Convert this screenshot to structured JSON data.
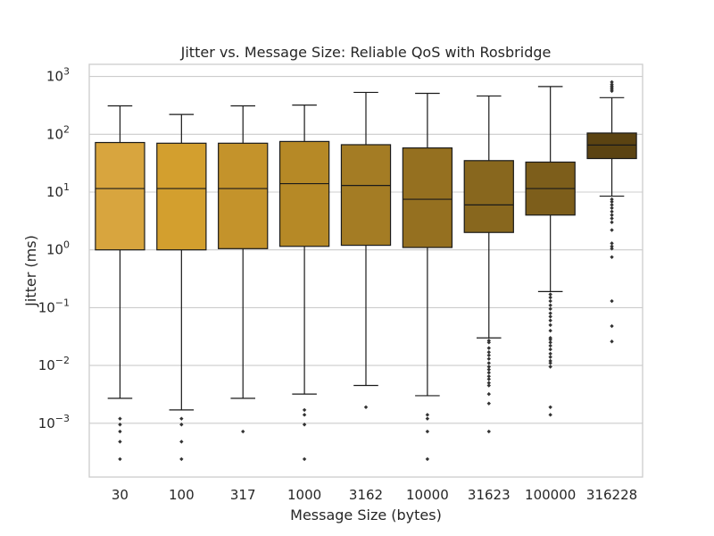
{
  "chart_data": {
    "type": "box",
    "title": "Jitter vs. Message Size: Reliable QoS with Rosbridge",
    "xlabel": "Message Size (bytes)",
    "ylabel": "Jitter (ms)",
    "yscale": "log",
    "ylim": [
      0.00015,
      1600
    ],
    "yticks": [
      {
        "value": 0.001,
        "base": "10",
        "exp": "−3"
      },
      {
        "value": 0.01,
        "base": "10",
        "exp": "−2"
      },
      {
        "value": 0.1,
        "base": "10",
        "exp": "−1"
      },
      {
        "value": 1,
        "base": "10",
        "exp": "0"
      },
      {
        "value": 10,
        "base": "10",
        "exp": "1"
      },
      {
        "value": 100,
        "base": "10",
        "exp": "2"
      },
      {
        "value": 1000,
        "base": "10",
        "exp": "3"
      }
    ],
    "grid": "y",
    "categories": [
      "30",
      "100",
      "317",
      "1000",
      "3162",
      "10000",
      "31623",
      "100000",
      "316228"
    ],
    "boxes": [
      {
        "category": "30",
        "color": "#d8a53e",
        "whisker_low": 0.0027,
        "q1": 1.0,
        "median": 11.5,
        "q3": 72,
        "whisker_high": 310,
        "outliers": [
          0.0012,
          0.00095,
          0.00072,
          0.00048,
          0.00024
        ]
      },
      {
        "category": "100",
        "color": "#d39f2e",
        "whisker_low": 0.0017,
        "q1": 1.0,
        "median": 11.5,
        "q3": 70,
        "whisker_high": 220,
        "outliers": [
          0.0012,
          0.00095,
          0.00048,
          0.00024
        ]
      },
      {
        "category": "317",
        "color": "#c4932b",
        "whisker_low": 0.0027,
        "q1": 1.05,
        "median": 11.5,
        "q3": 70,
        "whisker_high": 310,
        "outliers": [
          0.00072
        ]
      },
      {
        "category": "1000",
        "color": "#b68926",
        "whisker_low": 0.0032,
        "q1": 1.15,
        "median": 14,
        "q3": 75,
        "whisker_high": 320,
        "outliers": [
          0.0017,
          0.0014,
          0.00095,
          0.00024
        ]
      },
      {
        "category": "3162",
        "color": "#a47c24",
        "whisker_low": 0.0045,
        "q1": 1.2,
        "median": 13,
        "q3": 66,
        "whisker_high": 530,
        "outliers": [
          0.0019
        ]
      },
      {
        "category": "10000",
        "color": "#957020",
        "whisker_low": 0.003,
        "q1": 1.1,
        "median": 7.5,
        "q3": 58,
        "whisker_high": 510,
        "outliers": [
          0.0014,
          0.0012,
          0.00072,
          0.00024
        ]
      },
      {
        "category": "31623",
        "color": "#88671e",
        "whisker_low": 0.03,
        "q1": 2.0,
        "median": 6,
        "q3": 35,
        "whisker_high": 460,
        "outliers": [
          0.027,
          0.025,
          0.02,
          0.017,
          0.015,
          0.013,
          0.011,
          0.0095,
          0.0085,
          0.0075,
          0.0065,
          0.0058,
          0.005,
          0.0045,
          0.0032,
          0.0022,
          0.00072
        ]
      },
      {
        "category": "100000",
        "color": "#7d5e1b",
        "whisker_low": 0.19,
        "q1": 4.0,
        "median": 11.5,
        "q3": 33,
        "whisker_high": 670,
        "outliers": [
          0.17,
          0.15,
          0.13,
          0.11,
          0.095,
          0.08,
          0.07,
          0.06,
          0.05,
          0.04,
          0.03,
          0.028,
          0.025,
          0.022,
          0.019,
          0.016,
          0.014,
          0.012,
          0.011,
          0.0095,
          0.0019,
          0.0014
        ]
      },
      {
        "category": "316228",
        "color": "#5b4312",
        "whisker_low": 8.5,
        "q1": 38,
        "median": 65,
        "q3": 105,
        "whisker_high": 430,
        "outliers": [
          800,
          730,
          680,
          640,
          600,
          560,
          7.5,
          6.8,
          6.0,
          5.3,
          4.6,
          4.0,
          3.5,
          3.0,
          2.2,
          1.3,
          1.15,
          1.05,
          0.75,
          0.13,
          0.048,
          0.026
        ]
      }
    ]
  }
}
